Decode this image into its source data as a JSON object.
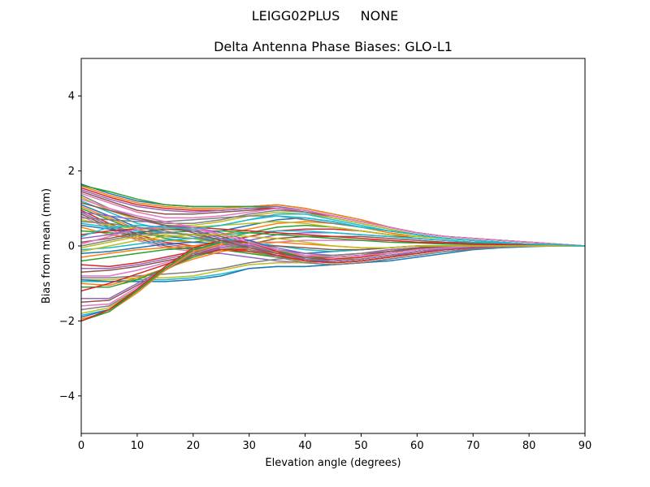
{
  "suptitle": "LEIGG02PLUS     NONE",
  "chart_data": {
    "type": "line",
    "title": "Delta Antenna Phase Biases: GLO-L1",
    "xlabel": "Elevation angle (degrees)",
    "ylabel": "Bias from mean (mm)",
    "xlim": [
      0,
      90
    ],
    "ylim": [
      -5,
      5
    ],
    "xticks": [
      0,
      10,
      20,
      30,
      40,
      50,
      60,
      70,
      80,
      90
    ],
    "yticks": [
      -4,
      -2,
      0,
      2,
      4
    ],
    "grid": false,
    "legend": false,
    "x": [
      0,
      5,
      10,
      15,
      20,
      25,
      30,
      35,
      40,
      45,
      50,
      55,
      60,
      65,
      70,
      75,
      80,
      85,
      90
    ],
    "colors": [
      "#1f77b4",
      "#ff7f0e",
      "#2ca02c",
      "#d62728",
      "#9467bd",
      "#8c564b",
      "#e377c2",
      "#7f7f7f",
      "#bcbd22",
      "#17becf"
    ],
    "series": [
      [
        1.65,
        1.4,
        1.2,
        1.1,
        1.05,
        1.05,
        1.05,
        1.1,
        1.0,
        0.85,
        0.7,
        0.5,
        0.35,
        0.25,
        0.2,
        0.15,
        0.1,
        0.05,
        0.0
      ],
      [
        1.6,
        1.35,
        1.15,
        1.05,
        1.0,
        1.0,
        1.05,
        1.1,
        1.0,
        0.85,
        0.7,
        0.5,
        0.35,
        0.25,
        0.2,
        0.15,
        0.1,
        0.05,
        0.0
      ],
      [
        1.62,
        1.45,
        1.25,
        1.1,
        1.05,
        1.05,
        1.05,
        1.05,
        0.95,
        0.8,
        0.65,
        0.5,
        0.35,
        0.25,
        0.2,
        0.15,
        0.1,
        0.05,
        0.0
      ],
      [
        1.55,
        1.3,
        1.1,
        1.0,
        0.95,
        0.95,
        1.0,
        1.0,
        0.9,
        0.8,
        0.65,
        0.5,
        0.35,
        0.25,
        0.2,
        0.15,
        0.1,
        0.05,
        0.0
      ],
      [
        1.5,
        1.25,
        1.05,
        0.95,
        0.9,
        0.95,
        1.0,
        1.05,
        0.95,
        0.8,
        0.65,
        0.5,
        0.35,
        0.25,
        0.2,
        0.15,
        0.1,
        0.05,
        0.0
      ],
      [
        1.45,
        1.2,
        0.95,
        0.85,
        0.85,
        0.9,
        0.95,
        1.0,
        0.9,
        0.75,
        0.6,
        0.45,
        0.3,
        0.2,
        0.15,
        0.1,
        0.05,
        0.03,
        0.0
      ],
      [
        1.4,
        1.15,
        0.9,
        0.75,
        0.75,
        0.8,
        0.9,
        1.0,
        0.95,
        0.8,
        0.65,
        0.5,
        0.35,
        0.25,
        0.2,
        0.15,
        0.1,
        0.05,
        0.0
      ],
      [
        1.35,
        1.0,
        0.75,
        0.6,
        0.6,
        0.7,
        0.85,
        0.95,
        0.9,
        0.75,
        0.6,
        0.45,
        0.3,
        0.2,
        0.15,
        0.1,
        0.05,
        0.03,
        0.0
      ],
      [
        1.3,
        0.95,
        0.7,
        0.55,
        0.55,
        0.65,
        0.8,
        0.9,
        0.85,
        0.75,
        0.6,
        0.45,
        0.3,
        0.2,
        0.15,
        0.1,
        0.05,
        0.03,
        0.0
      ],
      [
        1.2,
        0.9,
        0.6,
        0.45,
        0.45,
        0.55,
        0.7,
        0.85,
        0.85,
        0.7,
        0.55,
        0.4,
        0.3,
        0.2,
        0.15,
        0.1,
        0.05,
        0.03,
        0.0
      ],
      [
        1.1,
        0.8,
        0.5,
        0.35,
        0.3,
        0.4,
        0.55,
        0.7,
        0.75,
        0.65,
        0.5,
        0.4,
        0.3,
        0.2,
        0.15,
        0.1,
        0.05,
        0.03,
        0.0
      ],
      [
        1.05,
        0.75,
        0.45,
        0.25,
        0.2,
        0.3,
        0.45,
        0.6,
        0.65,
        0.6,
        0.5,
        0.35,
        0.25,
        0.2,
        0.15,
        0.1,
        0.05,
        0.03,
        0.0
      ],
      [
        1.0,
        0.7,
        0.4,
        0.2,
        0.1,
        0.2,
        0.35,
        0.5,
        0.55,
        0.5,
        0.4,
        0.3,
        0.25,
        0.2,
        0.15,
        0.1,
        0.05,
        0.03,
        0.0
      ],
      [
        0.95,
        0.6,
        0.3,
        0.1,
        0.0,
        0.1,
        0.25,
        0.4,
        0.45,
        0.45,
        0.4,
        0.3,
        0.2,
        0.15,
        0.1,
        0.08,
        0.05,
        0.03,
        0.0
      ],
      [
        0.9,
        0.55,
        0.25,
        0.05,
        -0.05,
        0.0,
        0.15,
        0.3,
        0.35,
        0.35,
        0.3,
        0.25,
        0.2,
        0.15,
        0.1,
        0.08,
        0.05,
        0.03,
        0.0
      ],
      [
        0.85,
        0.5,
        0.2,
        0.0,
        -0.1,
        -0.05,
        0.05,
        0.2,
        0.25,
        0.25,
        0.25,
        0.2,
        0.15,
        0.1,
        0.08,
        0.05,
        0.03,
        0.02,
        0.0
      ],
      [
        0.8,
        0.45,
        0.15,
        -0.05,
        -0.15,
        -0.1,
        0.0,
        0.1,
        0.15,
        0.15,
        0.15,
        0.15,
        0.1,
        0.08,
        0.05,
        0.04,
        0.03,
        0.02,
        0.0
      ],
      [
        0.75,
        0.7,
        0.65,
        0.65,
        0.7,
        0.75,
        0.8,
        0.8,
        0.7,
        0.6,
        0.5,
        0.4,
        0.3,
        0.2,
        0.15,
        0.1,
        0.05,
        0.03,
        0.0
      ],
      [
        0.7,
        0.55,
        0.45,
        0.45,
        0.5,
        0.55,
        0.6,
        0.65,
        0.6,
        0.5,
        0.4,
        0.3,
        0.25,
        0.2,
        0.15,
        0.1,
        0.05,
        0.03,
        0.0
      ],
      [
        0.6,
        0.5,
        0.4,
        0.35,
        0.3,
        0.3,
        0.35,
        0.4,
        0.4,
        0.35,
        0.3,
        0.25,
        0.2,
        0.15,
        0.1,
        0.08,
        0.05,
        0.03,
        0.0
      ],
      [
        0.55,
        0.45,
        0.35,
        0.25,
        0.2,
        0.1,
        0.0,
        -0.1,
        -0.2,
        -0.15,
        -0.1,
        -0.05,
        0.0,
        0.0,
        0.0,
        0.0,
        0.0,
        0.0,
        0.0
      ],
      [
        0.5,
        0.3,
        0.2,
        0.15,
        0.1,
        0.05,
        -0.05,
        -0.15,
        -0.25,
        -0.25,
        -0.2,
        -0.1,
        -0.05,
        0.0,
        0.0,
        0.0,
        0.0,
        0.0,
        0.0
      ],
      [
        0.4,
        0.35,
        0.3,
        0.35,
        0.4,
        0.4,
        0.35,
        0.3,
        0.25,
        0.2,
        0.15,
        0.1,
        0.08,
        0.05,
        0.04,
        0.03,
        0.02,
        0.01,
        0.0
      ],
      [
        0.3,
        0.4,
        0.45,
        0.5,
        0.5,
        0.45,
        0.4,
        0.35,
        0.3,
        0.25,
        0.2,
        0.15,
        0.1,
        0.08,
        0.05,
        0.04,
        0.03,
        0.02,
        0.0
      ],
      [
        0.2,
        0.3,
        0.45,
        0.55,
        0.5,
        0.35,
        0.15,
        -0.05,
        -0.2,
        -0.25,
        -0.2,
        -0.1,
        -0.05,
        0.0,
        0.0,
        0.0,
        0.0,
        0.0,
        0.0
      ],
      [
        0.1,
        0.2,
        0.35,
        0.45,
        0.4,
        0.25,
        0.05,
        -0.15,
        -0.3,
        -0.3,
        -0.25,
        -0.15,
        -0.05,
        0.0,
        0.0,
        0.0,
        0.0,
        0.0,
        0.0
      ],
      [
        0.05,
        0.25,
        0.45,
        0.5,
        0.45,
        0.3,
        0.1,
        -0.1,
        -0.25,
        -0.3,
        -0.25,
        -0.15,
        -0.08,
        -0.03,
        0.0,
        0.0,
        0.0,
        0.0,
        0.0
      ],
      [
        0.0,
        0.15,
        0.3,
        0.35,
        0.3,
        0.15,
        -0.05,
        -0.25,
        -0.35,
        -0.35,
        -0.3,
        -0.2,
        -0.1,
        -0.05,
        0.0,
        0.0,
        0.0,
        0.0,
        0.0
      ],
      [
        -0.05,
        0.1,
        0.25,
        0.3,
        0.2,
        0.05,
        -0.15,
        -0.3,
        -0.4,
        -0.4,
        -0.3,
        -0.2,
        -0.1,
        -0.05,
        0.0,
        0.0,
        0.0,
        0.0,
        0.0
      ],
      [
        -0.1,
        -0.05,
        0.05,
        0.15,
        0.2,
        0.2,
        0.1,
        0.0,
        -0.1,
        -0.15,
        -0.1,
        -0.05,
        0.0,
        0.0,
        0.0,
        0.0,
        0.0,
        0.0,
        0.0
      ],
      [
        -0.2,
        -0.15,
        -0.05,
        0.05,
        0.1,
        0.05,
        -0.05,
        -0.2,
        -0.3,
        -0.3,
        -0.25,
        -0.15,
        -0.08,
        -0.03,
        0.0,
        0.0,
        0.0,
        0.0,
        0.0
      ],
      [
        -0.3,
        -0.2,
        -0.1,
        -0.05,
        0.0,
        0.05,
        0.1,
        0.1,
        0.05,
        0.0,
        -0.05,
        -0.05,
        0.0,
        0.0,
        0.0,
        0.0,
        0.0,
        0.0,
        0.0
      ],
      [
        -0.4,
        -0.3,
        -0.2,
        -0.1,
        -0.05,
        -0.1,
        -0.2,
        -0.3,
        -0.35,
        -0.3,
        -0.25,
        -0.15,
        -0.08,
        -0.03,
        0.0,
        0.0,
        0.0,
        0.0,
        0.0
      ],
      [
        -0.5,
        -0.55,
        -0.45,
        -0.3,
        -0.15,
        -0.1,
        -0.15,
        -0.25,
        -0.35,
        -0.35,
        -0.3,
        -0.2,
        -0.1,
        -0.05,
        0.0,
        0.0,
        0.0,
        0.0,
        0.0
      ],
      [
        -0.6,
        -0.6,
        -0.5,
        -0.35,
        -0.2,
        -0.2,
        -0.3,
        -0.4,
        -0.45,
        -0.4,
        -0.35,
        -0.25,
        -0.15,
        -0.08,
        -0.03,
        0.0,
        0.0,
        0.0,
        0.0
      ],
      [
        -0.7,
        -0.65,
        -0.55,
        -0.4,
        -0.25,
        -0.1,
        0.0,
        0.0,
        -0.05,
        -0.1,
        -0.1,
        -0.05,
        0.0,
        0.0,
        0.0,
        0.0,
        0.0,
        0.0,
        0.0
      ],
      [
        -0.8,
        -0.8,
        -0.65,
        -0.45,
        -0.25,
        -0.1,
        -0.05,
        -0.2,
        -0.35,
        -0.4,
        -0.35,
        -0.25,
        -0.15,
        -0.08,
        -0.03,
        0.0,
        0.0,
        0.0,
        0.0
      ],
      [
        -0.85,
        -0.85,
        -0.8,
        -0.75,
        -0.7,
        -0.6,
        -0.45,
        -0.35,
        -0.3,
        -0.25,
        -0.2,
        -0.15,
        -0.1,
        -0.05,
        0.0,
        0.0,
        0.0,
        0.0,
        0.0
      ],
      [
        -0.9,
        -0.9,
        -0.85,
        -0.85,
        -0.8,
        -0.65,
        -0.5,
        -0.45,
        -0.45,
        -0.4,
        -0.35,
        -0.25,
        -0.15,
        -0.08,
        -0.03,
        0.0,
        0.0,
        0.0,
        0.0
      ],
      [
        -0.95,
        -0.95,
        -0.9,
        -0.9,
        -0.85,
        -0.75,
        -0.6,
        -0.55,
        -0.55,
        -0.5,
        -0.45,
        -0.35,
        -0.25,
        -0.15,
        -0.08,
        -0.04,
        0.0,
        0.0,
        0.0
      ],
      [
        -0.9,
        -0.95,
        -0.95,
        -0.95,
        -0.9,
        -0.8,
        -0.6,
        -0.55,
        -0.55,
        -0.5,
        -0.45,
        -0.4,
        -0.3,
        -0.2,
        -0.1,
        -0.05,
        -0.02,
        0.0,
        0.0
      ],
      [
        -1.0,
        -1.05,
        -0.85,
        -0.6,
        -0.35,
        -0.15,
        -0.05,
        -0.2,
        -0.4,
        -0.45,
        -0.4,
        -0.3,
        -0.2,
        -0.1,
        -0.05,
        0.0,
        0.0,
        0.0,
        0.0
      ],
      [
        -1.1,
        -1.1,
        -0.9,
        -0.6,
        -0.3,
        -0.1,
        0.0,
        -0.15,
        -0.35,
        -0.4,
        -0.35,
        -0.25,
        -0.15,
        -0.08,
        -0.03,
        0.0,
        0.0,
        0.0,
        0.0
      ],
      [
        -1.2,
        -1.0,
        -0.75,
        -0.5,
        -0.25,
        -0.1,
        -0.1,
        -0.25,
        -0.4,
        -0.45,
        -0.4,
        -0.3,
        -0.2,
        -0.1,
        -0.05,
        0.0,
        0.0,
        0.0,
        0.0
      ],
      [
        -1.4,
        -1.4,
        -1.0,
        -0.6,
        -0.25,
        -0.05,
        0.05,
        -0.15,
        -0.4,
        -0.45,
        -0.4,
        -0.3,
        -0.15,
        -0.08,
        -0.03,
        0.0,
        0.0,
        0.0,
        0.0
      ],
      [
        -1.5,
        -1.45,
        -1.05,
        -0.65,
        -0.25,
        0.0,
        0.05,
        -0.1,
        -0.35,
        -0.4,
        -0.35,
        -0.25,
        -0.15,
        -0.08,
        -0.03,
        0.0,
        0.0,
        0.0,
        0.0
      ],
      [
        -1.6,
        -1.55,
        -1.1,
        -0.6,
        -0.2,
        0.0,
        0.05,
        -0.15,
        -0.4,
        -0.45,
        -0.4,
        -0.3,
        -0.2,
        -0.1,
        -0.05,
        0.0,
        0.0,
        0.0,
        0.0
      ],
      [
        -1.7,
        -1.6,
        -1.15,
        -0.65,
        -0.2,
        0.05,
        0.1,
        -0.1,
        -0.35,
        -0.45,
        -0.4,
        -0.3,
        -0.2,
        -0.1,
        -0.05,
        0.0,
        0.0,
        0.0,
        0.0
      ],
      [
        -1.8,
        -1.65,
        -1.15,
        -0.6,
        -0.15,
        0.05,
        0.1,
        -0.1,
        -0.35,
        -0.4,
        -0.35,
        -0.25,
        -0.15,
        -0.08,
        -0.03,
        0.0,
        0.0,
        0.0,
        0.0
      ],
      [
        -1.85,
        -1.7,
        -1.2,
        -0.65,
        -0.15,
        0.1,
        0.1,
        -0.15,
        -0.4,
        -0.45,
        -0.4,
        -0.3,
        -0.2,
        -0.1,
        -0.05,
        0.0,
        0.0,
        0.0,
        0.0
      ],
      [
        -1.9,
        -1.7,
        -1.2,
        -0.6,
        -0.1,
        0.1,
        0.15,
        -0.1,
        -0.35,
        -0.45,
        -0.4,
        -0.3,
        -0.2,
        -0.1,
        -0.05,
        0.0,
        0.0,
        0.0,
        0.0
      ],
      [
        -1.95,
        -1.75,
        -1.25,
        -0.65,
        -0.15,
        0.05,
        0.1,
        -0.15,
        -0.4,
        -0.45,
        -0.4,
        -0.3,
        -0.2,
        -0.1,
        -0.05,
        0.0,
        0.0,
        0.0,
        0.0
      ],
      [
        -2.0,
        -1.75,
        -1.2,
        -0.6,
        -0.1,
        0.1,
        0.1,
        -0.1,
        -0.35,
        -0.4,
        -0.35,
        -0.25,
        -0.15,
        -0.08,
        -0.03,
        0.0,
        0.0,
        0.0,
        0.0
      ],
      [
        -2.0,
        -1.7,
        -1.15,
        -0.55,
        -0.05,
        0.15,
        0.1,
        -0.15,
        -0.4,
        -0.45,
        -0.4,
        -0.3,
        -0.2,
        -0.1,
        -0.05,
        0.0,
        0.0,
        0.0,
        0.0
      ],
      [
        0.9,
        0.8,
        0.7,
        0.55,
        0.4,
        0.2,
        0.0,
        -0.2,
        -0.35,
        -0.4,
        -0.35,
        -0.25,
        -0.15,
        -0.08,
        -0.03,
        0.0,
        0.0,
        0.0,
        0.0
      ],
      [
        1.15,
        0.95,
        0.75,
        0.55,
        0.35,
        0.15,
        -0.05,
        -0.2,
        -0.3,
        -0.3,
        -0.25,
        -0.15,
        -0.08,
        -0.03,
        0.0,
        0.0,
        0.0,
        0.0,
        0.0
      ],
      [
        1.25,
        1.0,
        0.8,
        0.65,
        0.5,
        0.3,
        0.1,
        -0.1,
        -0.25,
        -0.3,
        -0.25,
        -0.2,
        -0.1,
        -0.05,
        0.0,
        0.0,
        0.0,
        0.0,
        0.0
      ],
      [
        0.65,
        0.6,
        0.5,
        0.4,
        0.25,
        0.1,
        -0.1,
        -0.3,
        -0.45,
        -0.5,
        -0.45,
        -0.35,
        -0.25,
        -0.15,
        -0.08,
        -0.04,
        0.0,
        0.0,
        0.0
      ],
      [
        -0.15,
        0.0,
        0.15,
        0.25,
        0.3,
        0.3,
        0.25,
        0.2,
        0.1,
        0.0,
        -0.05,
        -0.05,
        0.0,
        0.0,
        0.0,
        0.0,
        0.0,
        0.0,
        0.0
      ],
      [
        0.25,
        0.5,
        0.55,
        0.5,
        0.45,
        0.55,
        0.7,
        0.8,
        0.75,
        0.65,
        0.5,
        0.4,
        0.3,
        0.2,
        0.15,
        0.1,
        0.05,
        0.03,
        0.0
      ]
    ]
  }
}
